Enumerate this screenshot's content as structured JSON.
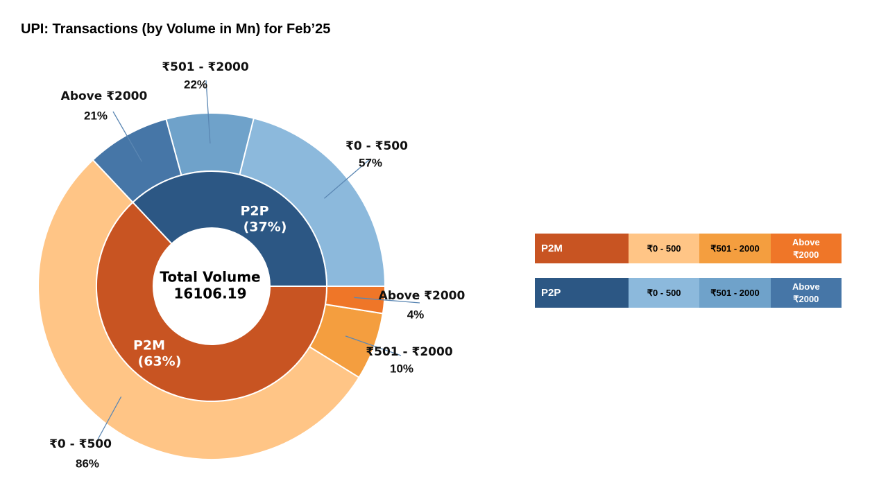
{
  "chart_data": {
    "type": "pie",
    "title": "UPI: Transactions (by Volume in Mn) for Feb’25",
    "center_label": {
      "line1": "Total Volume",
      "line2": "16106.19"
    },
    "inner_ring": [
      {
        "name": "P2P",
        "pct_label": "(37%)",
        "value": 37,
        "color": "#2c5784"
      },
      {
        "name": "P2M",
        "pct_label": "(63%)",
        "value": 63,
        "color": "#c85422"
      }
    ],
    "outer_ring": [
      {
        "group": "P2P",
        "label": "₹0 - ₹500",
        "pct_label": "57%",
        "share": 57,
        "color": "#8cb9dc"
      },
      {
        "group": "P2P",
        "label": "₹501 - ₹2000",
        "pct_label": "22%",
        "share": 22,
        "color": "#6fa2ca"
      },
      {
        "group": "P2P",
        "label": "Above ₹2000",
        "pct_label": "21%",
        "share": 21,
        "color": "#4676a7"
      },
      {
        "group": "P2M",
        "label": "₹0 - ₹500",
        "pct_label": "86%",
        "share": 86,
        "color": "#ffc586"
      },
      {
        "group": "P2M",
        "label": "₹501 - ₹2000",
        "pct_label": "10%",
        "share": 10,
        "color": "#f49e3f"
      },
      {
        "group": "P2M",
        "label": "Above ₹2000",
        "pct_label": "4%",
        "share": 4,
        "color": "#ef7628"
      }
    ]
  },
  "legend": [
    {
      "group": "P2M",
      "group_color": "#c85422",
      "items": [
        {
          "label": "₹0 - 500",
          "color": "#ffc586",
          "text_color": "#000000"
        },
        {
          "label": "₹501 - 2000",
          "color": "#f49e3f",
          "text_color": "#000000"
        },
        {
          "label": "Above ₹2000",
          "color": "#ef7628",
          "text_color": "#ffffff"
        }
      ]
    },
    {
      "group": "P2P",
      "group_color": "#2c5784",
      "items": [
        {
          "label": "₹0 - 500",
          "color": "#8cb9dc",
          "text_color": "#000000"
        },
        {
          "label": "₹501 - 2000",
          "color": "#6fa2ca",
          "text_color": "#000000"
        },
        {
          "label": "Above ₹2000",
          "color": "#4676a7",
          "text_color": "#ffffff"
        }
      ]
    }
  ]
}
